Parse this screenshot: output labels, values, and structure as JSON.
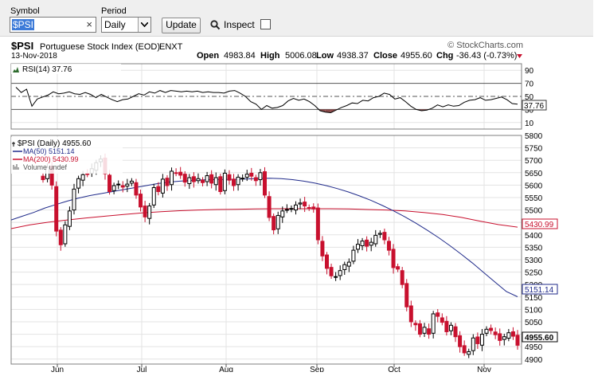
{
  "toolbar": {
    "symbol_label": "Symbol",
    "symbol_value": "$PSI",
    "period_label": "Period",
    "period_value": "Daily",
    "update_label": "Update",
    "inspect_label": "Inspect"
  },
  "header": {
    "symbol": "$PSI",
    "name": "Portuguese Stock Index (EOD)",
    "exchange": "ENXT",
    "watermark": "© StockCharts.com",
    "date": "13-Nov-2018",
    "open_label": "Open",
    "open": "4983.84",
    "high_label": "High",
    "high": "5006.08",
    "low_label": "Low",
    "low": "4938.37",
    "close_label": "Close",
    "close": "4955.60",
    "chg_label": "Chg",
    "chg": "-36.43 (-0.73%)"
  },
  "rsi_panel": {
    "label": "RSI(14) 37.76",
    "value_box": "37.76",
    "y_ticks": [
      "90",
      "70",
      "50",
      "30",
      "10"
    ]
  },
  "price_panel": {
    "legend": [
      {
        "text": "$PSI (Daily) 4955.60",
        "color": "#000000"
      },
      {
        "text": "MA(50) 5151.14",
        "color": "#1f2a8a"
      },
      {
        "text": "MA(200) 5430.99",
        "color": "#c8102e"
      },
      {
        "text": "Volume undef",
        "color": "#555555"
      }
    ],
    "y_ticks": [
      "5800",
      "5750",
      "5700",
      "5650",
      "5600",
      "5550",
      "5500",
      "5450",
      "5400",
      "5350",
      "5300",
      "5250",
      "5200",
      "5150",
      "5100",
      "5050",
      "5000",
      "4950",
      "4900"
    ],
    "ma200_box": "5430.99",
    "ma50_box": "5151.14",
    "close_box": "4955.60",
    "x_ticks": [
      "Jun",
      "Jul",
      "Aug",
      "Sep",
      "Oct",
      "Nov"
    ]
  },
  "colors": {
    "up": "#000000",
    "down": "#c8102e",
    "ma50": "#1f2a8a",
    "ma200": "#c8102e",
    "grid": "#e3e3e3",
    "rsi_fill_low": "#8b4a4a",
    "rsi_fill_high": "#2e6b2e"
  },
  "chart_data": [
    {
      "type": "line",
      "title": "RSI(14) 37.76",
      "ylim": [
        0,
        100
      ],
      "reference_lines": [
        70,
        50,
        30
      ],
      "series": [
        {
          "name": "RSI(14)",
          "values": [
            64,
            56,
            61,
            35,
            46,
            49,
            52,
            57,
            54,
            55,
            57,
            54,
            53,
            56,
            53,
            48,
            53,
            49,
            45,
            42,
            45,
            46,
            50,
            54,
            52,
            57,
            55,
            59,
            56,
            59,
            58,
            57,
            58,
            57,
            58,
            56,
            57,
            56,
            56,
            55,
            58,
            59,
            55,
            50,
            42,
            38,
            30,
            36,
            32,
            33,
            36,
            43,
            47,
            44,
            46,
            42,
            36,
            28,
            26,
            25,
            29,
            33,
            36,
            40,
            39,
            44,
            43,
            48,
            50,
            55,
            53,
            46,
            48,
            42,
            35,
            30,
            28,
            29,
            32,
            37,
            34,
            37,
            35,
            36,
            41,
            44,
            45,
            48,
            44,
            45,
            47,
            49,
            45,
            39,
            38
          ]
        }
      ]
    },
    {
      "type": "candlestick",
      "title": "$PSI (Daily) 4955.60",
      "ylim": [
        4880,
        5800
      ],
      "x_ticks": [
        "Jun",
        "Jul",
        "Aug",
        "Sep",
        "Oct",
        "Nov"
      ],
      "closes": [
        5622,
        5672,
        5600,
        5415,
        5360,
        5440,
        5496,
        5584,
        5626,
        5642,
        5644,
        5666,
        5690,
        5705,
        5646,
        5574,
        5598,
        5604,
        5592,
        5604,
        5616,
        5560,
        5512,
        5472,
        5516,
        5590,
        5574,
        5624,
        5598,
        5656,
        5648,
        5640,
        5612,
        5630,
        5614,
        5626,
        5610,
        5638,
        5608,
        5630,
        5574,
        5648,
        5620,
        5598,
        5632,
        5628,
        5644,
        5636,
        5618,
        5650,
        5560,
        5470,
        5420,
        5478,
        5496,
        5502,
        5506,
        5520,
        5528,
        5516,
        5508,
        5504,
        5380,
        5315,
        5265,
        5235,
        5232,
        5256,
        5280,
        5290,
        5338,
        5362,
        5375,
        5354,
        5370,
        5398,
        5406,
        5380,
        5338,
        5268,
        5262,
        5200,
        5110,
        5050,
        5038,
        5000,
        5028,
        5000,
        5082,
        5072,
        5048,
        5010,
        5036,
        4990,
        4950,
        4925,
        4930,
        4985,
        4962,
        5000,
        5020,
        5015,
        4998,
        4975,
        4990,
        5006,
        4992,
        4955.6
      ],
      "series": [
        {
          "name": "MA(50)",
          "end_value": 5151.14,
          "values": [
            5460,
            5475,
            5490,
            5508,
            5522,
            5536,
            5548,
            5558,
            5566,
            5574,
            5582,
            5590,
            5598,
            5606,
            5612,
            5616,
            5619,
            5621,
            5622,
            5623,
            5624,
            5625,
            5627,
            5628,
            5626,
            5622,
            5616,
            5608,
            5598,
            5586,
            5572,
            5556,
            5538,
            5518,
            5496,
            5472,
            5446,
            5418,
            5388,
            5356,
            5322,
            5286,
            5248,
            5210,
            5172,
            5151
          ]
        },
        {
          "name": "MA(200)",
          "end_value": 5430.99,
          "values": [
            5425,
            5440,
            5451,
            5460,
            5468,
            5475,
            5482,
            5488,
            5493,
            5497,
            5500,
            5502,
            5503,
            5504,
            5505,
            5505,
            5505,
            5505,
            5504,
            5502,
            5500,
            5496,
            5490,
            5482,
            5470,
            5455,
            5441,
            5431
          ]
        }
      ]
    }
  ]
}
